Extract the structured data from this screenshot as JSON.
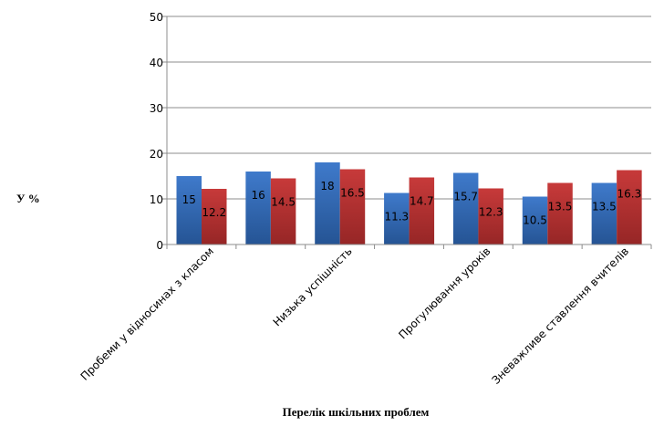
{
  "chart_data": {
    "type": "bar",
    "title": "",
    "xlabel": "Перелік шкільних проблем",
    "ylabel": "У %",
    "ylim": [
      0,
      50
    ],
    "yticks": [
      0,
      10,
      20,
      30,
      40,
      50
    ],
    "grid": true,
    "legend": "none",
    "categories": [
      "Пробеми у відносинах з класом",
      "",
      "Низька успішність",
      "",
      "Прогулювання уроків",
      "",
      "Зневажливе ставлення вчителів"
    ],
    "series": [
      {
        "values": [
          15,
          16,
          18,
          11.3,
          15.7,
          10.5,
          13.5
        ],
        "color": "#2E63AE"
      },
      {
        "values": [
          12.2,
          14.5,
          16.5,
          14.7,
          12.3,
          13.5,
          16.3
        ],
        "color": "#B32F2F"
      }
    ],
    "data_labels": [
      [
        "15",
        "16",
        "18",
        "11.3",
        "15.7",
        "10.5",
        "13.5"
      ],
      [
        "12.2",
        "14.5",
        "16.5",
        "14.7",
        "12.3",
        "13.5",
        "16.3"
      ]
    ]
  }
}
